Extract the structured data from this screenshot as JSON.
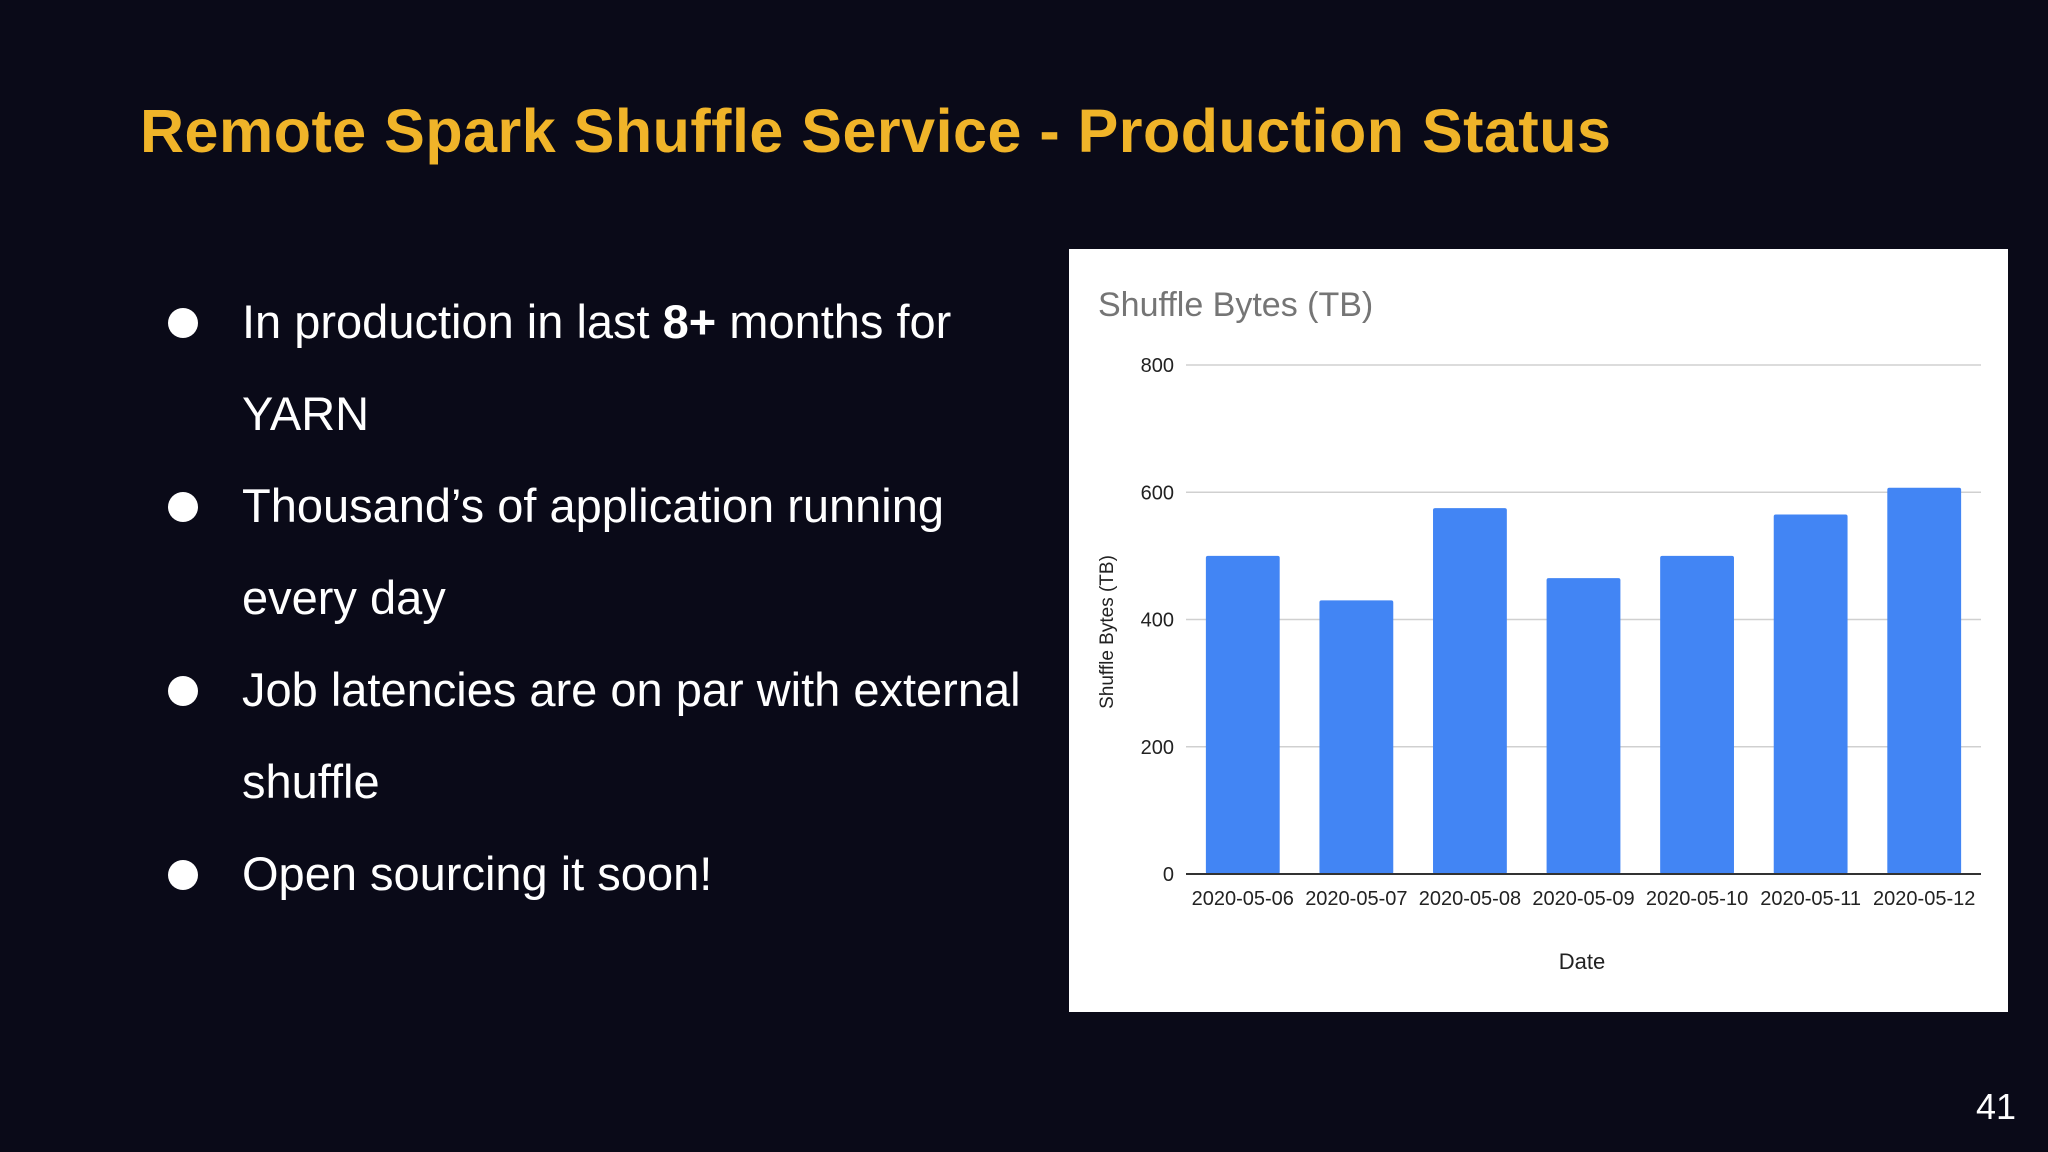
{
  "slide": {
    "title": "Remote Spark Shuffle Service - Production Status",
    "page_number": "41"
  },
  "bullets": [
    {
      "pre": "In production in last ",
      "bold": "8+",
      "post": " months for YARN"
    },
    {
      "pre": "Thousand’s of application running every day",
      "bold": "",
      "post": ""
    },
    {
      "pre": "Job latencies are on par with external shuffle",
      "bold": "",
      "post": ""
    },
    {
      "pre": "Open sourcing it soon!",
      "bold": "",
      "post": ""
    }
  ],
  "colors": {
    "background": "#0a0a18",
    "title": "#f0b429",
    "bar": "#4285f4"
  },
  "chart_data": {
    "type": "bar",
    "title": "Shuffle Bytes (TB)",
    "xlabel": "Date",
    "ylabel": "Shuffle Bytes (TB)",
    "categories": [
      "2020-05-06",
      "2020-05-07",
      "2020-05-08",
      "2020-05-09",
      "2020-05-10",
      "2020-05-11",
      "2020-05-12"
    ],
    "values": [
      500,
      430,
      575,
      465,
      500,
      565,
      607
    ],
    "ylim": [
      0,
      800
    ],
    "yticks": [
      0,
      200,
      400,
      600,
      800
    ],
    "grid": true,
    "legend": "none"
  }
}
